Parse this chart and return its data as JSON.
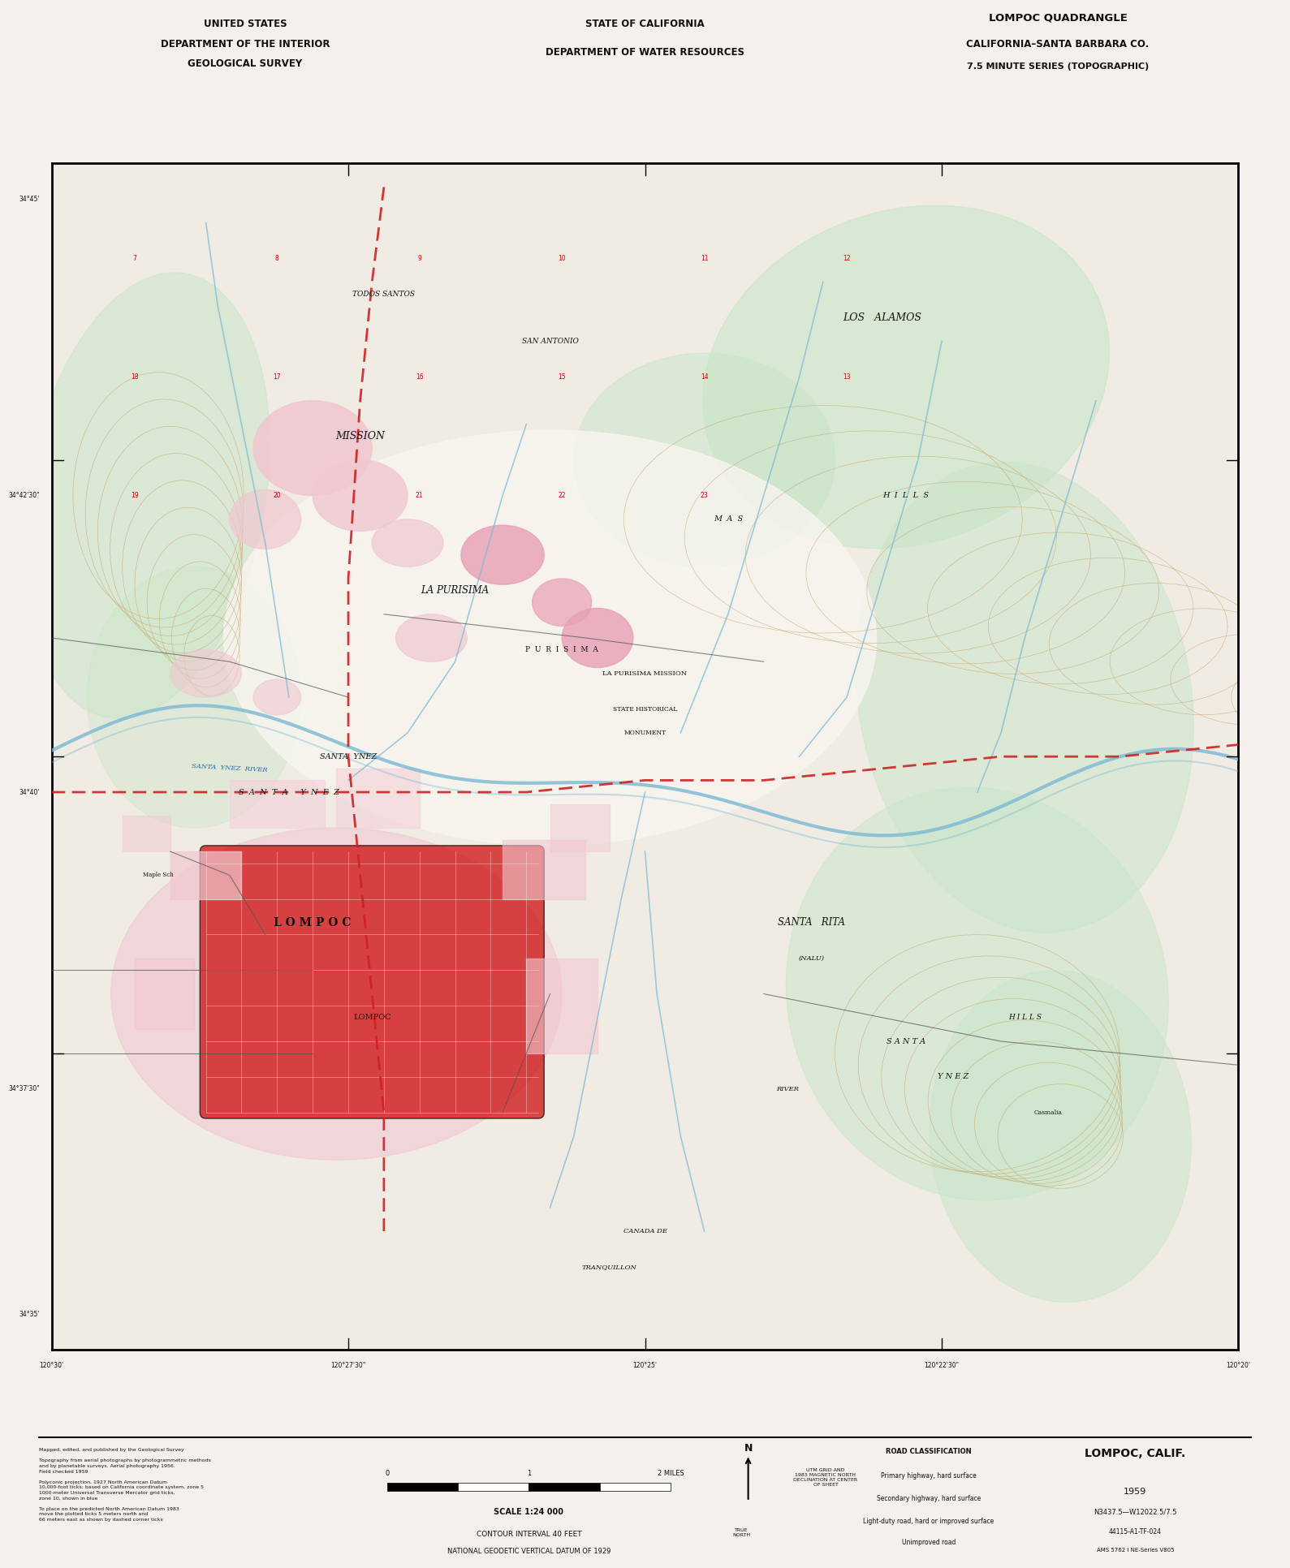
{
  "title_quad": "LOMPOC QUADRANGLE",
  "title_state": "CALIFORNIA–SANTA BARBARA CO.",
  "title_series": "7.5 MINUTE SERIES (TOPOGRAPHIC)",
  "header_left1": "UNITED STATES",
  "header_left2": "DEPARTMENT OF THE INTERIOR",
  "header_left3": "GEOLOGICAL SURVEY",
  "header_center1": "STATE OF CALIFORNIA",
  "header_center2": "DEPARTMENT OF WATER RESOURCES",
  "footer_name": "LOMPOC, CALIF.",
  "footer_year": "1959",
  "footer_series": "N3437.5—W12022.5/7.5",
  "footer_id": "44115-A1-TF-024",
  "scale_label": "SCALE 1:24000",
  "contour_interval": "CONTOUR INTERVAL 40 FEET",
  "datum": "NATIONAL GEODETIC VERTICAL DATUM OF 1929",
  "bg_color": "#f5f0eb",
  "map_bg": "#ffffff",
  "border_color": "#000000",
  "topo_brown": "#c8a882",
  "water_blue": "#7ab8d4",
  "veg_green": "#c8e6c8",
  "urban_red": "#e8b4b8",
  "urban_pink": "#f0c8d0",
  "road_red": "#cc2222",
  "road_black": "#333333",
  "text_label": "#222222",
  "pink_area": "#e8a0b4",
  "dark_red": "#cc0000",
  "light_pink": "#f5d0d8",
  "contour_color": "#c8a060",
  "fig_width": 15.89,
  "fig_height": 19.32,
  "dpi": 100
}
